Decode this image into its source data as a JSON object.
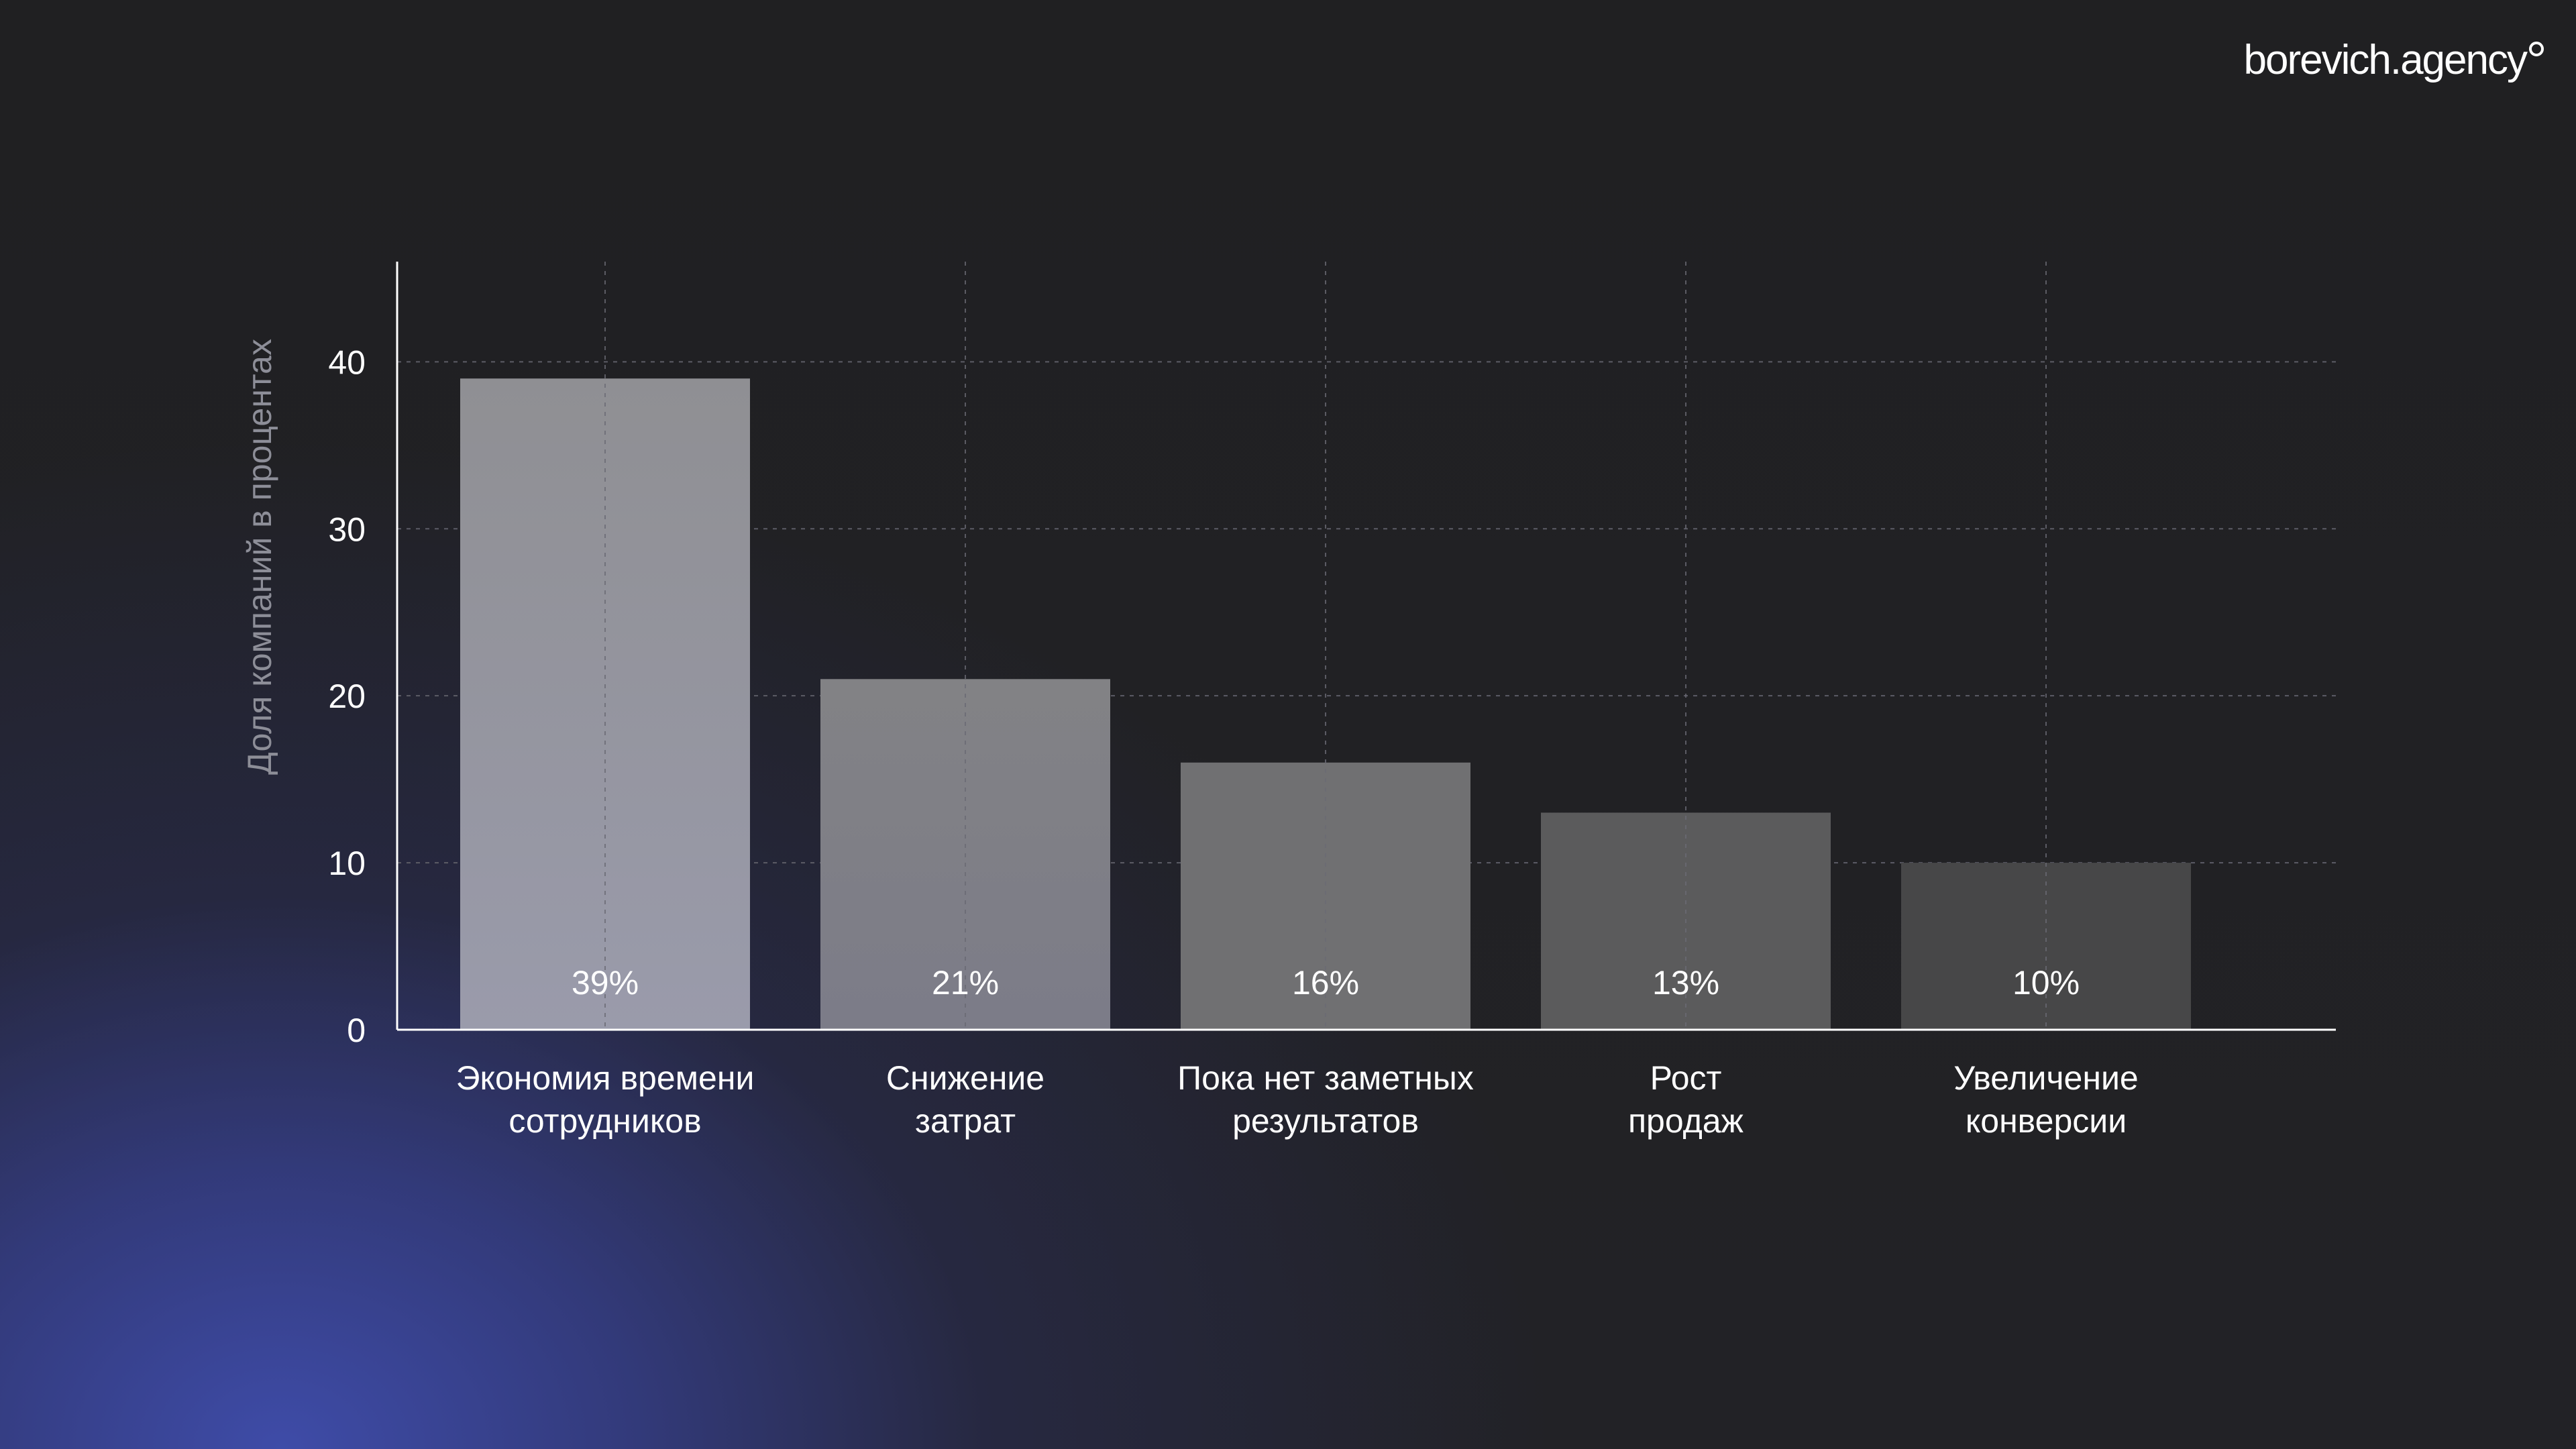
{
  "brand": {
    "logo_text": "borevich.agency"
  },
  "chart_data": {
    "type": "bar",
    "categories": [
      [
        "Экономия времени",
        "сотрудников"
      ],
      [
        "Снижение",
        "затрат"
      ],
      [
        "Пока нет заметных",
        "результатов"
      ],
      [
        "Рост",
        "продаж"
      ],
      [
        "Увеличение",
        "конверсии"
      ]
    ],
    "values": [
      39,
      21,
      16,
      13,
      10
    ],
    "data_labels": [
      "39%",
      "21%",
      "16%",
      "13%",
      "10%"
    ],
    "bar_colors": [
      "#9a9ba8",
      "#858590",
      "#707072",
      "#5b5b5c",
      "#474748"
    ],
    "title": "",
    "xlabel": "",
    "ylabel": "Доля компаний в процентах",
    "ylim": [
      0,
      46
    ],
    "yticks": [
      0,
      10,
      20,
      30,
      40
    ],
    "grid": true,
    "legend": "none"
  }
}
